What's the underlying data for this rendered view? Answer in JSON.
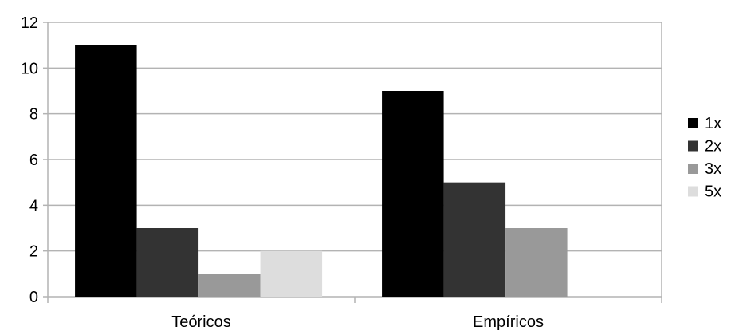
{
  "chart_data": {
    "type": "bar",
    "title": "",
    "xlabel": "",
    "ylabel": "",
    "categories": [
      "Teóricos",
      "Empíricos"
    ],
    "series": [
      {
        "name": "1x",
        "values": [
          11,
          9
        ],
        "color": "#000000"
      },
      {
        "name": "2x",
        "values": [
          3,
          5
        ],
        "color": "#333333"
      },
      {
        "name": "3x",
        "values": [
          1,
          3
        ],
        "color": "#999999"
      },
      {
        "name": "5x",
        "values": [
          2,
          0
        ],
        "color": "#dddddd"
      }
    ],
    "ylim": [
      0,
      12
    ],
    "yticks": [
      0,
      2,
      4,
      6,
      8,
      10,
      12
    ],
    "grid": true,
    "legend_position": "right",
    "grid_color": "#b3b3b3",
    "axis_color": "#b3b3b3"
  }
}
